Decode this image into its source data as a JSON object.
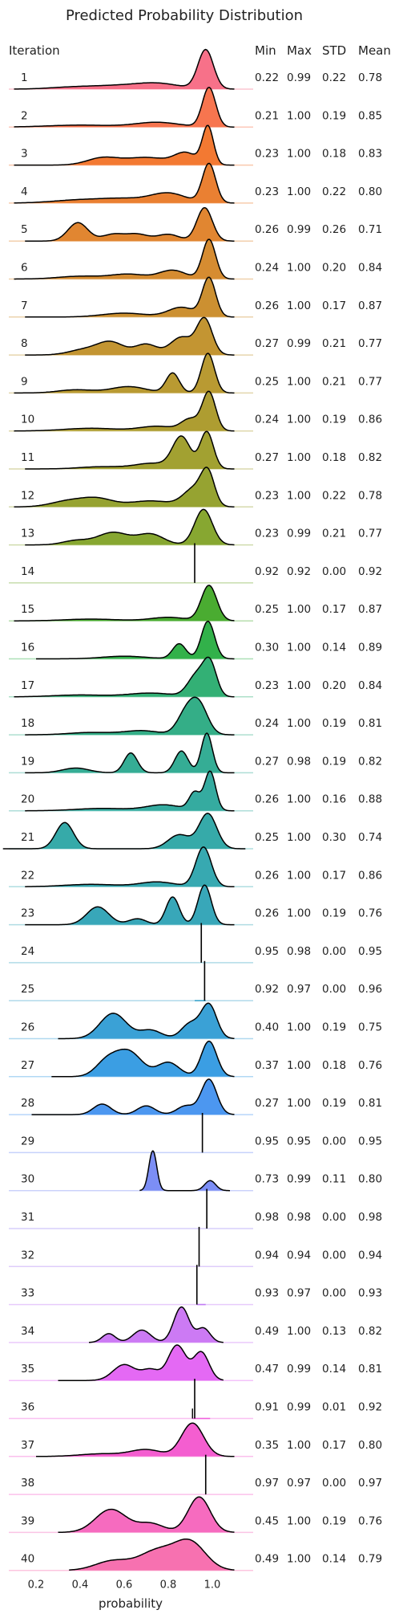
{
  "chart_data": {
    "type": "area",
    "title": "Predicted Probability Distribution",
    "xlabel": "probability",
    "row_label_header": "Iteration",
    "stat_headers": [
      "Min",
      "Max",
      "STD",
      "Mean"
    ],
    "x_ticks": [
      "0.2",
      "0.4",
      "0.6",
      "0.8",
      "1.0"
    ],
    "x_tick_values": [
      0.2,
      0.4,
      0.6,
      0.8,
      1.0
    ],
    "xlim": [
      0.1,
      1.13
    ],
    "rows": [
      {
        "label": "1",
        "min": "0.22",
        "max": "0.99",
        "std": "0.22",
        "mean": "0.78",
        "color": "#f77189",
        "height": 0.95,
        "peaks": [
          [
            0.35,
            0.1,
            0.04
          ],
          [
            0.55,
            0.12,
            0.08
          ],
          [
            0.75,
            0.1,
            0.14
          ],
          [
            0.97,
            0.035,
            1.0
          ]
        ],
        "range": [
          0.1,
          1.1
        ]
      },
      {
        "label": "2",
        "min": "0.21",
        "max": "1.00",
        "std": "0.19",
        "mean": "0.85",
        "color": "#f7754f",
        "height": 0.95,
        "peaks": [
          [
            0.4,
            0.15,
            0.05
          ],
          [
            0.75,
            0.1,
            0.12
          ],
          [
            0.985,
            0.03,
            1.0
          ]
        ],
        "range": [
          0.1,
          1.1
        ]
      },
      {
        "label": "3",
        "min": "0.23",
        "max": "1.00",
        "std": "0.18",
        "mean": "0.83",
        "color": "#f37932",
        "height": 0.95,
        "peaks": [
          [
            0.5,
            0.07,
            0.18
          ],
          [
            0.7,
            0.1,
            0.2
          ],
          [
            0.88,
            0.05,
            0.3
          ],
          [
            0.98,
            0.025,
            1.0
          ]
        ],
        "range": [
          0.1,
          1.1
        ]
      },
      {
        "label": "4",
        "min": "0.23",
        "max": "1.00",
        "std": "0.22",
        "mean": "0.80",
        "color": "#ea8032",
        "height": 0.95,
        "peaks": [
          [
            0.4,
            0.12,
            0.08
          ],
          [
            0.6,
            0.1,
            0.1
          ],
          [
            0.8,
            0.08,
            0.25
          ],
          [
            0.985,
            0.03,
            1.0
          ]
        ],
        "range": [
          0.1,
          1.1
        ]
      },
      {
        "label": "5",
        "min": "0.26",
        "max": "0.99",
        "std": "0.26",
        "mean": "0.71",
        "color": "#e18631",
        "height": 0.8,
        "peaks": [
          [
            0.39,
            0.045,
            0.55
          ],
          [
            0.55,
            0.05,
            0.2
          ],
          [
            0.66,
            0.05,
            0.2
          ],
          [
            0.8,
            0.05,
            0.2
          ],
          [
            0.965,
            0.035,
            1.0
          ]
        ],
        "range": [
          0.15,
          1.1
        ]
      },
      {
        "label": "6",
        "min": "0.24",
        "max": "1.00",
        "std": "0.20",
        "mean": "0.84",
        "color": "#d68c31",
        "height": 0.95,
        "peaks": [
          [
            0.4,
            0.1,
            0.07
          ],
          [
            0.62,
            0.08,
            0.12
          ],
          [
            0.82,
            0.06,
            0.22
          ],
          [
            0.985,
            0.03,
            1.0
          ]
        ],
        "range": [
          0.1,
          1.1
        ]
      },
      {
        "label": "7",
        "min": "0.26",
        "max": "1.00",
        "std": "0.17",
        "mean": "0.87",
        "color": "#cc9031",
        "height": 0.95,
        "peaks": [
          [
            0.6,
            0.1,
            0.1
          ],
          [
            0.86,
            0.06,
            0.25
          ],
          [
            0.985,
            0.03,
            1.0
          ]
        ],
        "range": [
          0.15,
          1.1
        ]
      },
      {
        "label": "8",
        "min": "0.27",
        "max": "0.99",
        "std": "0.21",
        "mean": "0.77",
        "color": "#c39532",
        "height": 0.9,
        "peaks": [
          [
            0.42,
            0.07,
            0.15
          ],
          [
            0.54,
            0.06,
            0.35
          ],
          [
            0.7,
            0.05,
            0.3
          ],
          [
            0.86,
            0.05,
            0.5
          ],
          [
            0.965,
            0.035,
            1.0
          ]
        ],
        "range": [
          0.15,
          1.1
        ]
      },
      {
        "label": "9",
        "min": "0.25",
        "max": "1.00",
        "std": "0.21",
        "mean": "0.77",
        "color": "#b99a32",
        "height": 0.95,
        "peaks": [
          [
            0.38,
            0.08,
            0.08
          ],
          [
            0.62,
            0.08,
            0.16
          ],
          [
            0.82,
            0.03,
            0.5
          ],
          [
            0.98,
            0.03,
            1.0
          ]
        ],
        "range": [
          0.1,
          1.1
        ]
      },
      {
        "label": "10",
        "min": "0.24",
        "max": "1.00",
        "std": "0.19",
        "mean": "0.86",
        "color": "#ae9d31",
        "height": 0.95,
        "peaks": [
          [
            0.45,
            0.12,
            0.07
          ],
          [
            0.75,
            0.08,
            0.12
          ],
          [
            0.9,
            0.04,
            0.3
          ],
          [
            0.985,
            0.03,
            1.0
          ]
        ],
        "range": [
          0.1,
          1.1
        ]
      },
      {
        "label": "11",
        "min": "0.27",
        "max": "1.00",
        "std": "0.18",
        "mean": "0.82",
        "color": "#a2a131",
        "height": 0.9,
        "peaks": [
          [
            0.5,
            0.1,
            0.06
          ],
          [
            0.73,
            0.08,
            0.15
          ],
          [
            0.86,
            0.04,
            0.85
          ],
          [
            0.975,
            0.03,
            1.0
          ]
        ],
        "range": [
          0.15,
          1.1
        ]
      },
      {
        "label": "12",
        "min": "0.23",
        "max": "1.00",
        "std": "0.22",
        "mean": "0.78",
        "color": "#96a331",
        "height": 0.95,
        "peaks": [
          [
            0.35,
            0.08,
            0.2
          ],
          [
            0.48,
            0.07,
            0.25
          ],
          [
            0.72,
            0.1,
            0.2
          ],
          [
            0.92,
            0.05,
            0.6
          ],
          [
            0.98,
            0.03,
            1.0
          ]
        ],
        "range": [
          0.1,
          1.1
        ]
      },
      {
        "label": "13",
        "min": "0.23",
        "max": "0.99",
        "std": "0.21",
        "mean": "0.77",
        "color": "#87a731",
        "height": 0.85,
        "peaks": [
          [
            0.38,
            0.06,
            0.12
          ],
          [
            0.55,
            0.07,
            0.35
          ],
          [
            0.72,
            0.06,
            0.3
          ],
          [
            0.96,
            0.04,
            1.0
          ]
        ],
        "range": [
          0.15,
          1.1
        ]
      },
      {
        "label": "14",
        "min": "0.92",
        "max": "0.92",
        "std": "0.00",
        "mean": "0.92",
        "color": "#72aa31",
        "spike": 0.92,
        "height": 0.95
      },
      {
        "label": "15",
        "min": "0.25",
        "max": "1.00",
        "std": "0.17",
        "mean": "0.87",
        "color": "#4aac31",
        "height": 0.85,
        "peaks": [
          [
            0.45,
            0.12,
            0.05
          ],
          [
            0.8,
            0.08,
            0.1
          ],
          [
            0.985,
            0.035,
            1.0
          ]
        ],
        "range": [
          0.1,
          1.1
        ]
      },
      {
        "label": "16",
        "min": "0.30",
        "max": "1.00",
        "std": "0.14",
        "mean": "0.89",
        "color": "#32b14a",
        "height": 0.9,
        "peaks": [
          [
            0.6,
            0.1,
            0.07
          ],
          [
            0.85,
            0.03,
            0.4
          ],
          [
            0.98,
            0.03,
            1.0
          ]
        ],
        "range": [
          0.2,
          1.1
        ]
      },
      {
        "label": "17",
        "min": "0.23",
        "max": "1.00",
        "std": "0.20",
        "mean": "0.84",
        "color": "#33b075",
        "height": 0.95,
        "peaks": [
          [
            0.4,
            0.12,
            0.06
          ],
          [
            0.72,
            0.1,
            0.12
          ],
          [
            0.93,
            0.04,
            0.7
          ],
          [
            0.99,
            0.03,
            1.0
          ]
        ],
        "range": [
          0.1,
          1.1
        ]
      },
      {
        "label": "18",
        "min": "0.24",
        "max": "1.00",
        "std": "0.19",
        "mean": "0.81",
        "color": "#34ae87",
        "height": 0.9,
        "peaks": [
          [
            0.45,
            0.1,
            0.07
          ],
          [
            0.68,
            0.08,
            0.12
          ],
          [
            0.88,
            0.04,
            0.6
          ],
          [
            0.94,
            0.04,
            0.85
          ]
        ],
        "range": [
          0.15,
          1.1
        ]
      },
      {
        "label": "19",
        "min": "0.27",
        "max": "0.98",
        "std": "0.19",
        "mean": "0.82",
        "color": "#35ad95",
        "height": 0.95,
        "peaks": [
          [
            0.38,
            0.06,
            0.12
          ],
          [
            0.63,
            0.03,
            0.5
          ],
          [
            0.86,
            0.03,
            0.55
          ],
          [
            0.975,
            0.025,
            1.0
          ]
        ],
        "range": [
          0.15,
          1.1
        ]
      },
      {
        "label": "20",
        "min": "0.26",
        "max": "1.00",
        "std": "0.16",
        "mean": "0.88",
        "color": "#35aba0",
        "height": 0.95,
        "peaks": [
          [
            0.5,
            0.12,
            0.06
          ],
          [
            0.78,
            0.08,
            0.15
          ],
          [
            0.92,
            0.025,
            0.45
          ],
          [
            0.99,
            0.025,
            1.0
          ]
        ],
        "range": [
          0.15,
          1.1
        ]
      },
      {
        "label": "21",
        "min": "0.25",
        "max": "1.00",
        "std": "0.30",
        "mean": "0.74",
        "color": "#36aaa9",
        "height": 0.85,
        "peaks": [
          [
            0.33,
            0.04,
            0.75
          ],
          [
            0.85,
            0.05,
            0.4
          ],
          [
            0.98,
            0.04,
            1.0
          ]
        ],
        "range": [
          0.05,
          1.15
        ]
      },
      {
        "label": "22",
        "min": "0.26",
        "max": "1.00",
        "std": "0.17",
        "mean": "0.86",
        "color": "#37a9b1",
        "height": 0.95,
        "peaks": [
          [
            0.45,
            0.12,
            0.06
          ],
          [
            0.75,
            0.08,
            0.12
          ],
          [
            0.96,
            0.035,
            1.0
          ]
        ],
        "range": [
          0.15,
          1.1
        ]
      },
      {
        "label": "23",
        "min": "0.26",
        "max": "1.00",
        "std": "0.19",
        "mean": "0.76",
        "color": "#38a7b9",
        "height": 0.95,
        "peaks": [
          [
            0.48,
            0.05,
            0.45
          ],
          [
            0.66,
            0.04,
            0.15
          ],
          [
            0.82,
            0.03,
            0.7
          ],
          [
            0.965,
            0.03,
            1.0
          ]
        ],
        "range": [
          0.15,
          1.1
        ]
      },
      {
        "label": "24",
        "min": "0.95",
        "max": "0.98",
        "std": "0.00",
        "mean": "0.95",
        "color": "#39a5c2",
        "spike": 0.95,
        "height": 0.95
      },
      {
        "label": "25",
        "min": "0.92",
        "max": "0.97",
        "std": "0.00",
        "mean": "0.96",
        "color": "#3aa3cb",
        "spike": 0.965,
        "height": 0.95,
        "base_tick": [
          0.92,
          0.97
        ]
      },
      {
        "label": "26",
        "min": "0.40",
        "max": "1.00",
        "std": "0.19",
        "mean": "0.75",
        "color": "#3aa1d6",
        "height": 0.85,
        "peaks": [
          [
            0.55,
            0.06,
            0.75
          ],
          [
            0.72,
            0.05,
            0.25
          ],
          [
            0.9,
            0.04,
            0.45
          ],
          [
            0.985,
            0.035,
            1.0
          ]
        ],
        "range": [
          0.3,
          1.1
        ]
      },
      {
        "label": "27",
        "min": "0.37",
        "max": "1.00",
        "std": "0.18",
        "mean": "0.76",
        "color": "#3b9ee3",
        "height": 0.85,
        "peaks": [
          [
            0.52,
            0.05,
            0.4
          ],
          [
            0.62,
            0.06,
            0.7
          ],
          [
            0.8,
            0.05,
            0.4
          ],
          [
            0.985,
            0.035,
            1.0
          ]
        ],
        "range": [
          0.27,
          1.1
        ]
      },
      {
        "label": "28",
        "min": "0.27",
        "max": "1.00",
        "std": "0.19",
        "mean": "0.81",
        "color": "#4c97f0",
        "height": 0.85,
        "peaks": [
          [
            0.5,
            0.04,
            0.3
          ],
          [
            0.7,
            0.04,
            0.25
          ],
          [
            0.88,
            0.04,
            0.25
          ],
          [
            0.985,
            0.035,
            1.0
          ]
        ],
        "range": [
          0.18,
          1.1
        ]
      },
      {
        "label": "29",
        "min": "0.95",
        "max": "0.95",
        "std": "0.00",
        "mean": "0.95",
        "color": "#708ff4",
        "spike": 0.955,
        "height": 0.95
      },
      {
        "label": "30",
        "min": "0.73",
        "max": "0.99",
        "std": "0.11",
        "mean": "0.80",
        "color": "#7c8ef5",
        "height": 0.95,
        "peaks": [
          [
            0.73,
            0.018,
            1.0
          ],
          [
            0.99,
            0.025,
            0.25
          ]
        ],
        "range": [
          0.67,
          1.08
        ]
      },
      {
        "label": "31",
        "min": "0.98",
        "max": "0.98",
        "std": "0.00",
        "mean": "0.98",
        "color": "#9a87f5",
        "spike": 0.975,
        "height": 0.95
      },
      {
        "label": "32",
        "min": "0.94",
        "max": "0.94",
        "std": "0.00",
        "mean": "0.94",
        "color": "#ae83f5",
        "spike": 0.94,
        "height": 0.95
      },
      {
        "label": "33",
        "min": "0.93",
        "max": "0.97",
        "std": "0.00",
        "mean": "0.93",
        "color": "#c27ef5",
        "spike": 0.93,
        "height": 0.95,
        "base_tick": [
          0.93,
          0.97
        ]
      },
      {
        "label": "34",
        "min": "0.49",
        "max": "1.00",
        "std": "0.13",
        "mean": "0.82",
        "color": "#cc7af4",
        "height": 0.85,
        "peaks": [
          [
            0.53,
            0.03,
            0.25
          ],
          [
            0.68,
            0.04,
            0.35
          ],
          [
            0.86,
            0.035,
            1.0
          ],
          [
            0.96,
            0.03,
            0.4
          ]
        ],
        "range": [
          0.44,
          1.05
        ]
      },
      {
        "label": "35",
        "min": "0.47",
        "max": "0.99",
        "std": "0.14",
        "mean": "0.81",
        "color": "#e469f4",
        "height": 0.85,
        "peaks": [
          [
            0.6,
            0.05,
            0.45
          ],
          [
            0.72,
            0.04,
            0.3
          ],
          [
            0.84,
            0.04,
            1.0
          ],
          [
            0.95,
            0.035,
            0.8
          ]
        ],
        "range": [
          0.3,
          1.05
        ]
      },
      {
        "label": "36",
        "min": "0.91",
        "max": "0.99",
        "std": "0.01",
        "mean": "0.92",
        "color": "#f061dd",
        "spike": 0.92,
        "height": 0.95,
        "base_tick": [
          0.91,
          0.99
        ],
        "extra_spike": 0.91
      },
      {
        "label": "37",
        "min": "0.35",
        "max": "1.00",
        "std": "0.17",
        "mean": "0.80",
        "color": "#f45ed0",
        "height": 0.8,
        "peaks": [
          [
            0.5,
            0.1,
            0.08
          ],
          [
            0.7,
            0.07,
            0.2
          ],
          [
            0.91,
            0.05,
            1.0
          ]
        ],
        "range": [
          0.2,
          1.1
        ]
      },
      {
        "label": "38",
        "min": "0.97",
        "max": "0.97",
        "std": "0.00",
        "mean": "0.97",
        "color": "#f565cc",
        "spike": 0.97,
        "height": 0.95
      },
      {
        "label": "39",
        "min": "0.45",
        "max": "1.00",
        "std": "0.19",
        "mean": "0.76",
        "color": "#f66bbf",
        "height": 0.85,
        "peaks": [
          [
            0.54,
            0.07,
            0.65
          ],
          [
            0.72,
            0.06,
            0.25
          ],
          [
            0.94,
            0.05,
            1.0
          ]
        ],
        "range": [
          0.3,
          1.1
        ]
      },
      {
        "label": "40",
        "min": "0.49",
        "max": "1.00",
        "std": "0.14",
        "mean": "0.79",
        "color": "#f771b0",
        "height": 0.75,
        "peaks": [
          [
            0.55,
            0.08,
            0.35
          ],
          [
            0.75,
            0.08,
            0.7
          ],
          [
            0.9,
            0.07,
            1.0
          ]
        ],
        "range": [
          0.35,
          1.1
        ]
      }
    ]
  }
}
